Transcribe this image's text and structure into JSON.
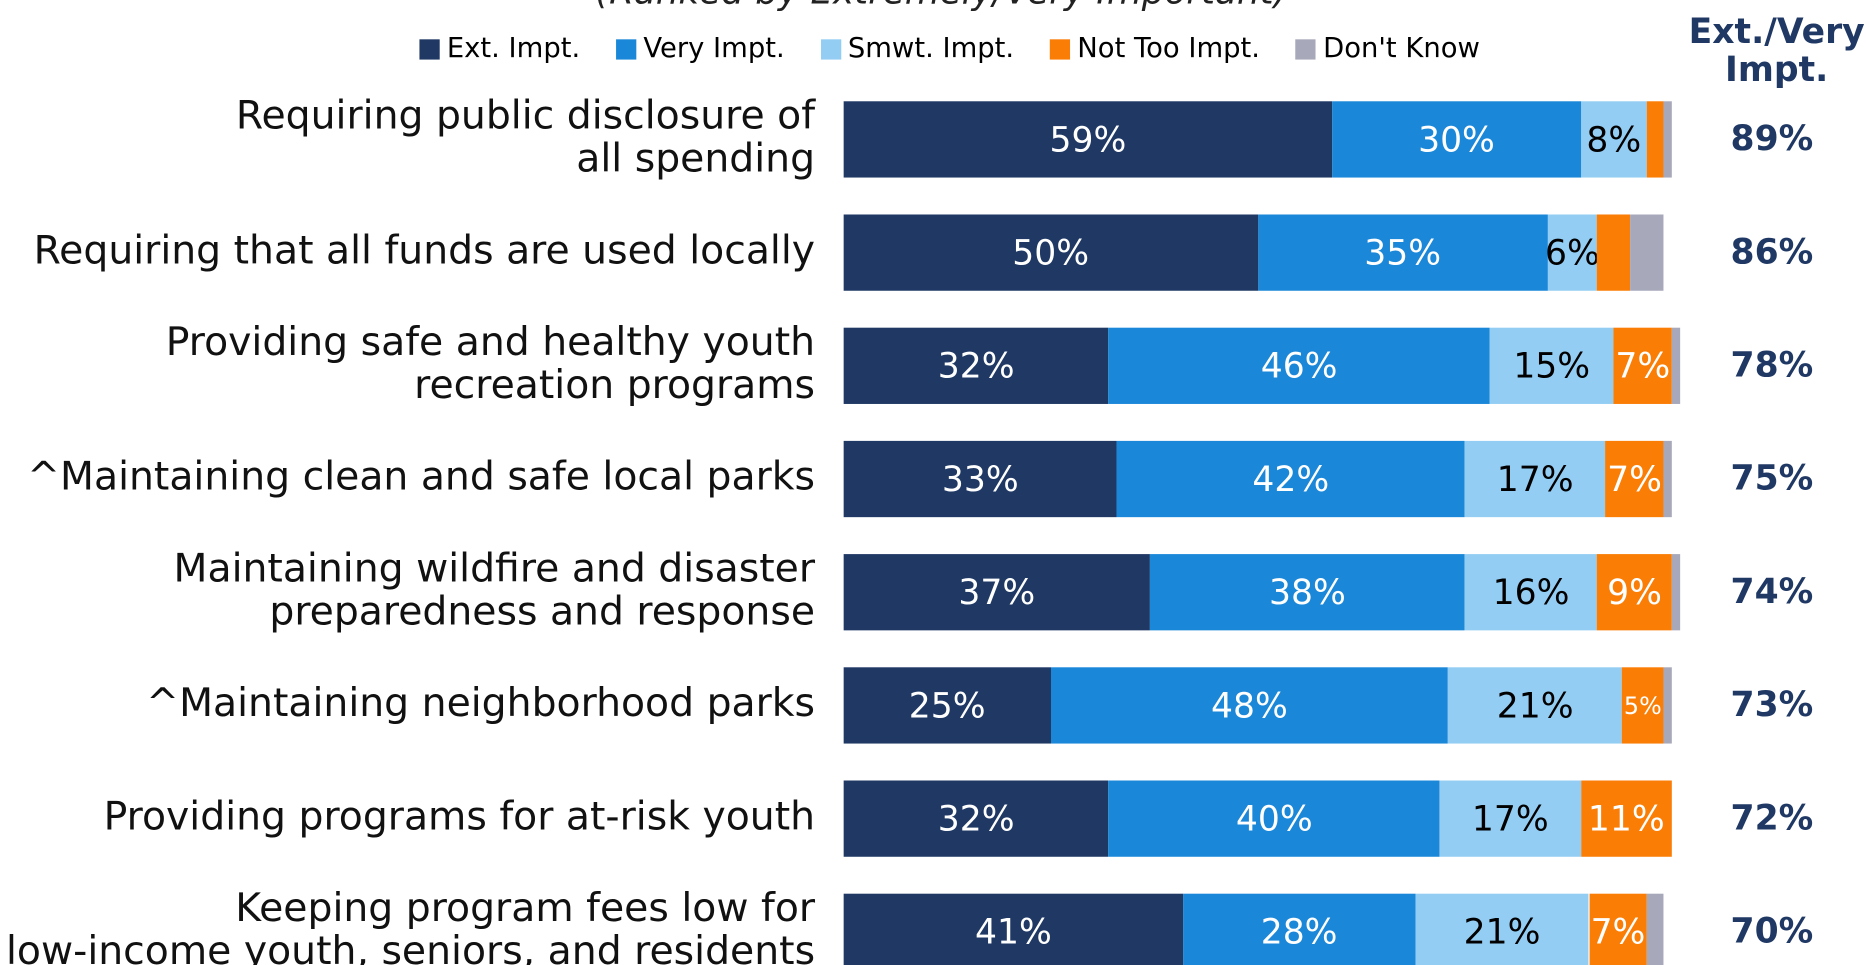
{
  "chart_data": {
    "type": "stacked-bar-horizontal",
    "subtitle": "(Ranked by Extremely/Very Important)",
    "categories": [
      "Requiring public disclosure of\nall spending",
      "Requiring that all funds are used locally",
      "Providing safe and healthy youth\nrecreation programs",
      "^Maintaining clean and safe local parks",
      "Maintaining wildfire and disaster\npreparedness and response",
      "^Maintaining neighborhood parks",
      "Providing programs for at-risk youth",
      "Keeping program fees low for\nlow-income youth, seniors, and residents"
    ],
    "series": [
      {
        "name": "Ext. Impt.",
        "color": "#1f3864",
        "label_color": "#ffffff",
        "values": [
          59,
          50,
          32,
          33,
          37,
          25,
          32,
          41
        ],
        "value_labels": [
          "59%",
          "50%",
          "32%",
          "33%",
          "37%",
          "25%",
          "32%",
          "41%"
        ]
      },
      {
        "name": "Very Impt.",
        "color": "#1a87d8",
        "label_color": "#ffffff",
        "values": [
          30,
          35,
          46,
          42,
          38,
          48,
          40,
          28
        ],
        "value_labels": [
          "30%",
          "35%",
          "46%",
          "42%",
          "38%",
          "48%",
          "40%",
          "28%"
        ]
      },
      {
        "name": "Smwt. Impt.",
        "color": "#94cdf3",
        "label_color": "#000000",
        "values": [
          8,
          6,
          15,
          17,
          16,
          21,
          17,
          21
        ],
        "value_labels": [
          "8%",
          "6%",
          "15%",
          "17%",
          "16%",
          "21%",
          "17%",
          "21%"
        ]
      },
      {
        "name": "Not Too Impt.",
        "color": "#fa7d05",
        "label_color": "#ffffff",
        "values": [
          2,
          4,
          7,
          7,
          9,
          5,
          11,
          7
        ],
        "value_labels": [
          null,
          null,
          "7%",
          "7%",
          "9%",
          "5%",
          "11%",
          "7%"
        ]
      },
      {
        "name": "Don't Know",
        "color": "#a7a9ba",
        "label_color": "#ffffff",
        "values": [
          1,
          4,
          1,
          1,
          1,
          1,
          0,
          2
        ],
        "value_labels": [
          null,
          null,
          null,
          null,
          null,
          null,
          null,
          null
        ]
      }
    ],
    "totals": {
      "name": "Ext./Very\nImpt.",
      "values": [
        89,
        86,
        78,
        75,
        74,
        73,
        72,
        70
      ],
      "value_labels": [
        "89%",
        "86%",
        "78%",
        "75%",
        "74%",
        "73%",
        "72%",
        "70%"
      ]
    },
    "xlim": [
      0,
      100
    ]
  }
}
